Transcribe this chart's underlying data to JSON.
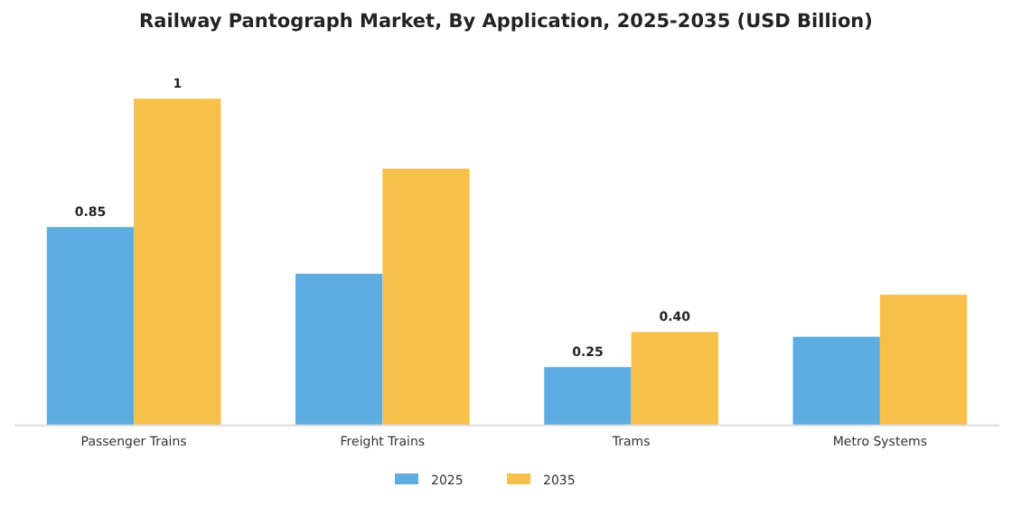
{
  "chart_data": {
    "type": "bar",
    "title": "Railway Pantograph Market, By Application, 2025-2035 (USD Billion)",
    "categories": [
      "Passenger Trains",
      "Freight Trains",
      "Trams",
      "Metro Systems"
    ],
    "series": [
      {
        "name": "2025",
        "color": "#5dade2",
        "values": [
          0.85,
          0.65,
          0.25,
          0.38
        ],
        "value_labels": [
          "0.85",
          null,
          "0.25",
          null
        ]
      },
      {
        "name": "2035",
        "color": "#f7c04a",
        "values": [
          1.4,
          1.1,
          0.4,
          0.56
        ],
        "value_labels": [
          "1",
          null,
          "0.40",
          null
        ]
      }
    ],
    "legend": "bottom",
    "grid": false
  }
}
